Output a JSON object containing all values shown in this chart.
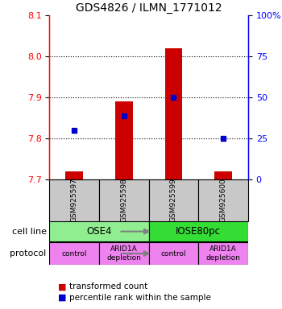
{
  "title": "GDS4826 / ILMN_1771012",
  "samples": [
    "GSM925597",
    "GSM925598",
    "GSM925599",
    "GSM925600"
  ],
  "bar_values": [
    7.72,
    7.89,
    8.02,
    7.72
  ],
  "bar_bottom": 7.7,
  "blue_values": [
    7.82,
    7.855,
    7.9,
    7.8
  ],
  "ylim_left": [
    7.7,
    8.1
  ],
  "ylim_right": [
    0,
    100
  ],
  "yticks_left": [
    7.7,
    7.8,
    7.9,
    8.0,
    8.1
  ],
  "yticks_right": [
    0,
    25,
    50,
    75,
    100
  ],
  "ytick_labels_right": [
    "0",
    "25",
    "50",
    "75",
    "100%"
  ],
  "cell_line_labels": [
    "OSE4",
    "IOSE80pc"
  ],
  "cell_line_colors": [
    "#90EE90",
    "#33DD33"
  ],
  "cell_line_spans": [
    [
      0,
      2
    ],
    [
      2,
      4
    ]
  ],
  "protocol_labels": [
    "control",
    "ARID1A\ndepletion",
    "control",
    "ARID1A\ndepletion"
  ],
  "protocol_color": "#EE82EE",
  "bar_color": "#CC0000",
  "blue_color": "#0000CC",
  "sample_box_color": "#C8C8C8",
  "legend_items": [
    "transformed count",
    "percentile rank within the sample"
  ],
  "bar_width": 0.35
}
